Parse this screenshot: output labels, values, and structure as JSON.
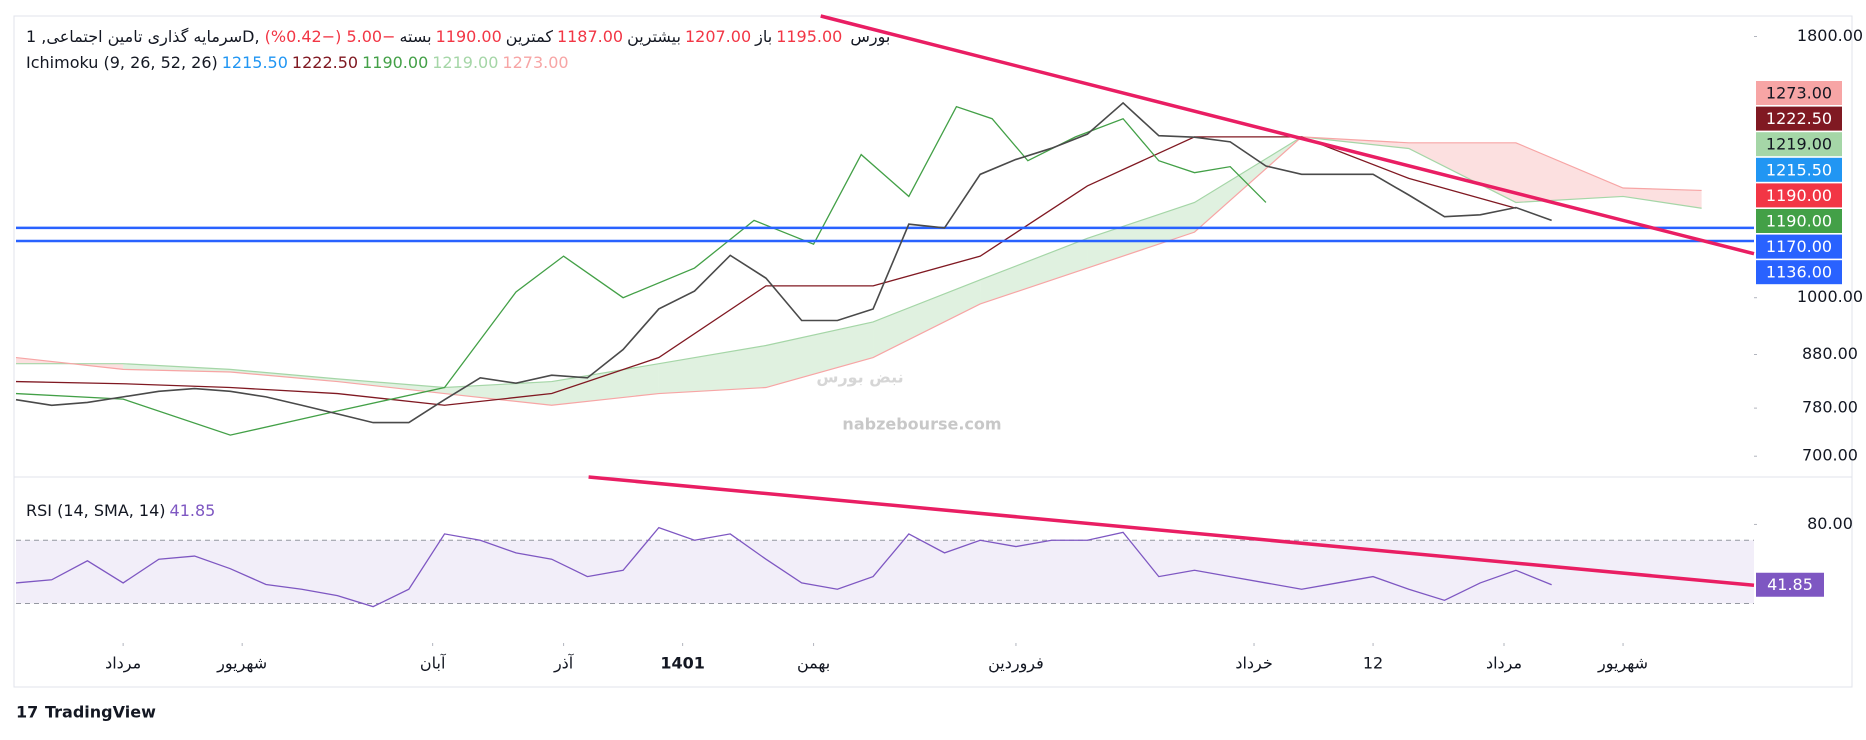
{
  "chart_data": {
    "type": "line",
    "symbol": "سرمایه گذاری تامین اجتماعی, 1D, بورس",
    "ohlc": [
      {
        "label": "باز",
        "value": "1195.00"
      },
      {
        "label": "بیشترین",
        "value": "1207.00"
      },
      {
        "label": "کمترین",
        "value": "1187.00"
      },
      {
        "label": "بسته",
        "value": "1190.00",
        "number": 1190,
        "color": "#f23645"
      }
    ],
    "change": "−5.00 (−0.42%)",
    "xlim": [
      0,
      146
    ],
    "xticks": [
      {
        "value": 9,
        "label": "مرداد"
      },
      {
        "value": 19,
        "label": "شهریور"
      },
      {
        "value": 35,
        "label": "آبان"
      },
      {
        "value": 46,
        "label": "آذر"
      },
      {
        "value": 56,
        "label": "1401"
      },
      {
        "value": 67,
        "label": "بهمن"
      },
      {
        "value": 84,
        "label": "فروردین"
      },
      {
        "value": 104,
        "label": "خرداد"
      },
      {
        "value": 114,
        "label": "12"
      },
      {
        "value": 125,
        "label": "مرداد"
      },
      {
        "value": 135,
        "label": "شهریور"
      }
    ],
    "ylim": [
      668,
      1885
    ],
    "log_scale": true,
    "yticks": [
      {
        "value": 1800,
        "label": "1800.00"
      },
      {
        "value": 1000,
        "label": "1000.00"
      },
      {
        "value": 880,
        "label": "880.00"
      },
      {
        "value": 780,
        "label": "780.00"
      },
      {
        "value": 700,
        "label": "700.00"
      }
    ],
    "x": [
      0,
      3,
      6,
      9,
      12,
      15,
      18,
      21,
      24,
      27,
      30,
      33,
      36,
      39,
      42,
      45,
      48,
      51,
      54,
      57,
      60,
      63,
      66,
      69,
      72,
      75,
      78,
      81,
      84,
      87,
      90,
      93,
      96,
      99,
      102,
      105,
      108,
      111,
      114,
      117,
      120,
      123,
      126,
      129
    ],
    "series": [
      {
        "color": "#4a4a4a",
        "values": [
          795,
          785,
          790,
          800,
          810,
          815,
          810,
          800,
          785,
          770,
          755,
          755,
          795,
          835,
          825,
          840,
          835,
          890,
          975,
          1015,
          1100,
          1045,
          950,
          950,
          975,
          1180,
          1170,
          1320,
          1365,
          1400,
          1445,
          1550,
          1440,
          1435,
          1420,
          1345,
          1320,
          1320,
          1320,
          1260,
          1200,
          1205,
          1225,
          1190
        ]
      }
    ],
    "ichimoku": {
      "title": "Ichimoku (9, 26, 52, 26)",
      "values": [
        {
          "value": 1215.5,
          "label": "1215.50",
          "color": "#2196f3"
        },
        {
          "value": 1222.5,
          "label": "1222.50",
          "color": "#801922"
        },
        {
          "value": 1190,
          "label": "1190.00",
          "color": "#43a047"
        },
        {
          "value": 1219,
          "label": "1219.00",
          "color": "#a5d6a7"
        },
        {
          "value": 1273,
          "label": "1273.00",
          "color": "#f7a5a5"
        }
      ],
      "lines": [
        {
          "color": "#801922",
          "x": [
            0,
            9,
            18,
            27,
            36,
            45,
            54,
            63,
            72,
            81,
            90,
            99,
            108,
            117,
            126
          ],
          "values": [
            828,
            824,
            817,
            806,
            785,
            806,
            874,
            1027,
            1027,
            1098,
            1286,
            1436,
            1436,
            1308,
            1223
          ]
        },
        {
          "color": "#43a047",
          "x": [
            0,
            9,
            18,
            27,
            36,
            42,
            46,
            51,
            57,
            62,
            67,
            71,
            75,
            79,
            82,
            85,
            89,
            93,
            96,
            99,
            102,
            105
          ],
          "values": [
            806,
            796,
            734,
            775,
            817,
            1013,
            1098,
            1000,
            1069,
            1190,
            1128,
            1380,
            1256,
            1537,
            1496,
            1361,
            1436,
            1496,
            1361,
            1325,
            1343,
            1239
          ]
        }
      ],
      "cloud": {
        "x": [
          0,
          9,
          18,
          27,
          36,
          45,
          54,
          63,
          72,
          81,
          90,
          99,
          108,
          117,
          126,
          135,
          141.6
        ],
        "span_a": [
          862,
          862,
          851,
          833,
          817,
          828,
          862,
          898,
          947,
          1041,
          1143,
          1239,
          1436,
          1399,
          1239,
          1256,
          1223
        ],
        "span_b": [
          874,
          851,
          846,
          828,
          806,
          785,
          806,
          817,
          874,
          986,
          1069,
          1159,
          1436,
          1417,
          1417,
          1280,
          1273
        ],
        "up_color": "#a5d6a7",
        "down_color": "#f7a5a5"
      }
    },
    "levels": [
      {
        "value": 1170,
        "label": "1170.00",
        "color": "#2962ff"
      },
      {
        "value": 1136,
        "label": "1136.00",
        "color": "#2962ff"
      }
    ],
    "trendlines": [
      {
        "color": "#e91e63",
        "x": [
          67.6,
          146
        ],
        "values": [
          1885,
          1104
        ]
      }
    ],
    "watermark": {
      "logo": "نبض بورس",
      "site": "nabzebourse.com"
    },
    "rsi": {
      "title": "RSI (14, SMA, 14)",
      "value": 41.85,
      "color": "#7e57c2",
      "ylim": [
        5,
        110
      ],
      "yticks": [
        {
          "value": 80,
          "label": "80.00"
        }
      ],
      "bands": [
        30,
        70
      ],
      "values": [
        43,
        45,
        57,
        43,
        58,
        60,
        52,
        42,
        39,
        35,
        28,
        39,
        74,
        70,
        62,
        58,
        47,
        51,
        78,
        70,
        74,
        58,
        43,
        39,
        47,
        74,
        62,
        70,
        66,
        70,
        70,
        75,
        47,
        51,
        47,
        43,
        39,
        43,
        47,
        39,
        32,
        43,
        51,
        41.85
      ],
      "trendline": {
        "color": "#e91e63",
        "x": [
          48.1,
          146
        ],
        "values": [
          110,
          41.5
        ]
      }
    },
    "brand": "TradingView"
  }
}
